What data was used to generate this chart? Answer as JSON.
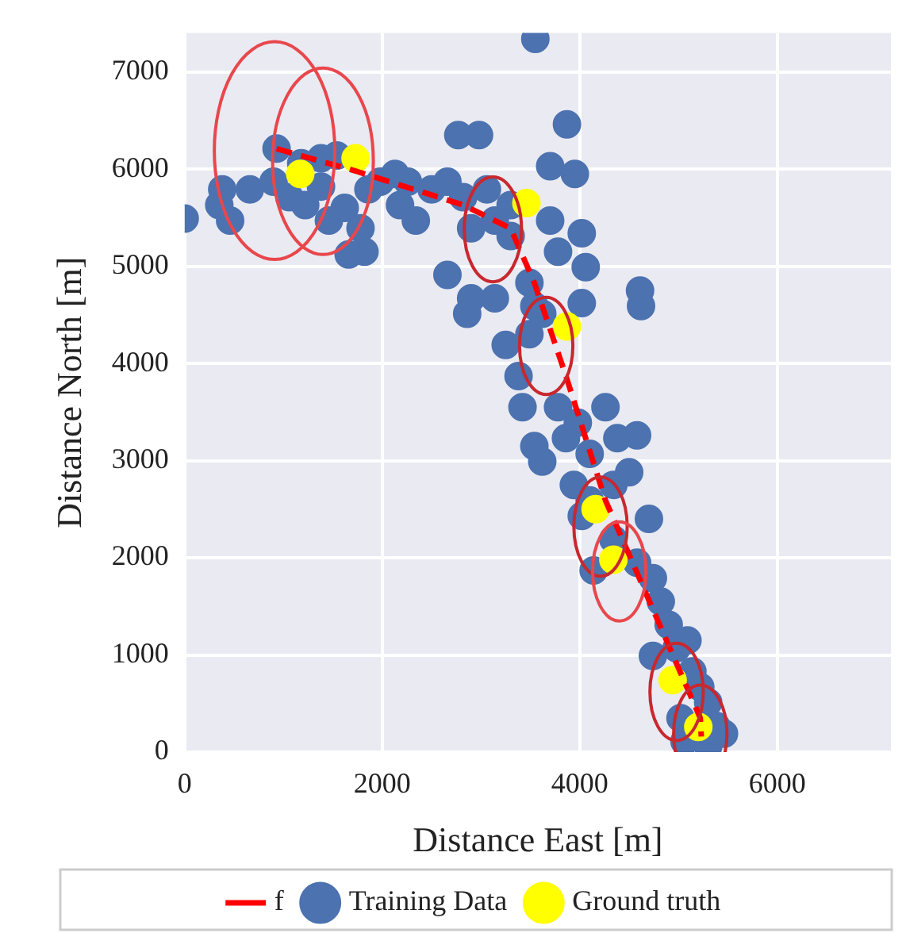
{
  "chart_data": {
    "type": "scatter",
    "xlabel": "Distance East [m]",
    "ylabel": "Distance North [m]",
    "xlim": [
      0,
      7150
    ],
    "ylim": [
      0,
      7400
    ],
    "xticks": [
      0,
      2000,
      4000,
      6000
    ],
    "yticks": [
      0,
      1000,
      2000,
      3000,
      4000,
      5000,
      6000,
      7000
    ],
    "grid": true,
    "legend": "bottom",
    "series": [
      {
        "name": "f",
        "type": "line",
        "color": "#ff0000",
        "line_style": "dashed",
        "marker": "none",
        "x": [
          930,
          1730,
          2820,
          3300,
          3540,
          3860,
          4260,
          4740,
          5220,
          5230
        ],
        "values": [
          6210,
          5980,
          5630,
          5390,
          4830,
          3870,
          2590,
          1470,
          350,
          160
        ]
      },
      {
        "name": "Training Data",
        "color": "#4c72b0",
        "marker": "circle",
        "x": [
          0,
          380,
          460,
          350,
          660,
          900,
          930,
          1060,
          1220,
          1380,
          1460,
          1620,
          1660,
          1820,
          1780,
          1540,
          1380,
          1180,
          1860,
          1980,
          2130,
          2260,
          2180,
          2340,
          2500,
          2660,
          2770,
          2980,
          2660,
          2900,
          2820,
          3060,
          3140,
          3300,
          2900,
          2860,
          3140,
          3250,
          3380,
          3490,
          3540,
          3780,
          4020,
          3870,
          3700,
          3950,
          3550,
          3490,
          3620,
          4020,
          4610,
          4620,
          3420,
          3540,
          3620,
          3780,
          3860,
          3980,
          4100,
          4260,
          4380,
          4580,
          3940,
          4100,
          4340,
          4500,
          4700,
          4020,
          4140,
          4340,
          4580,
          4740,
          4820,
          4900,
          4740,
          4980,
          5090,
          5140,
          5220,
          5020,
          5300,
          5380,
          5460,
          5060,
          5300,
          3300,
          3700,
          4060
        ],
        "values": [
          5490,
          5790,
          5470,
          5630,
          5790,
          5870,
          6210,
          5710,
          5630,
          5820,
          5470,
          5600,
          5120,
          5150,
          5390,
          6140,
          6110,
          6060,
          5790,
          5870,
          5950,
          5870,
          5630,
          5470,
          5790,
          5870,
          6350,
          6350,
          4910,
          5390,
          5710,
          5790,
          5470,
          5630,
          4670,
          4510,
          4670,
          4190,
          3870,
          4300,
          4590,
          5150,
          5340,
          6460,
          6030,
          5950,
          7340,
          4830,
          4510,
          4620,
          4750,
          4590,
          3550,
          3150,
          2990,
          3550,
          3230,
          3390,
          3070,
          3550,
          3230,
          3260,
          2750,
          2590,
          2750,
          2880,
          2400,
          2430,
          1870,
          2190,
          1950,
          1790,
          1550,
          1310,
          990,
          1070,
          1150,
          830,
          670,
          350,
          510,
          270,
          190,
          110,
          60,
          5310,
          5470,
          4990
        ]
      },
      {
        "name": "Ground truth",
        "color": "#ffff00",
        "marker": "circle",
        "x": [
          1170,
          1730,
          3460,
          3870,
          4160,
          4340,
          4940,
          5200
        ],
        "values": [
          5950,
          6110,
          5650,
          4380,
          2500,
          1980,
          740,
          260
        ]
      }
    ]
  }
}
